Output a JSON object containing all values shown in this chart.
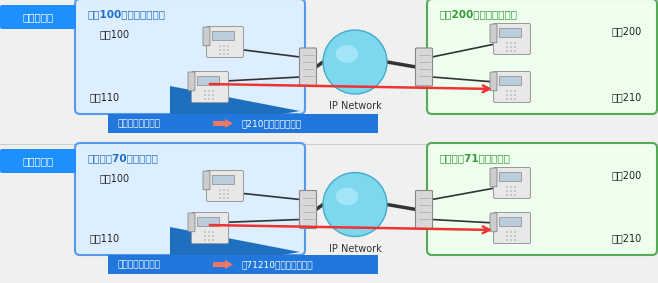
{
  "bg_color": "#f0f0f0",
  "row1": {
    "label_text": "閉番号方式",
    "label_bg": "#1e8fff",
    "label_fg": "#ffffff",
    "left_box_title": "内線100番台のシステム",
    "left_box_title_color": "#1e6fcc",
    "left_box_border": "#5599ee",
    "left_box_bg": "#ddeeff",
    "right_box_title": "内線200番台のシステム",
    "right_box_title_color": "#339933",
    "right_box_border": "#55aa55",
    "right_box_bg": "#eeffee",
    "ext_left_top": "内線100",
    "ext_left_bot": "内線110",
    "ext_right_top": "内線200",
    "ext_right_bot": "内線210",
    "banner_text1": "受話器を上げる。",
    "banner_text2": "「210」とダイヤル。",
    "banner_bg": "#2277dd",
    "banner_fg": "#ffffff"
  },
  "row2": {
    "label_text": "開番号方式",
    "label_bg": "#1e8fff",
    "label_fg": "#ffffff",
    "left_box_title": "局番号：70のシステム",
    "left_box_title_color": "#1e6fcc",
    "left_box_border": "#5599ee",
    "left_box_bg": "#ddeeff",
    "right_box_title": "局番号：71のシステム",
    "right_box_title_color": "#339933",
    "right_box_border": "#55aa55",
    "right_box_bg": "#eeffee",
    "ext_left_top": "内線100",
    "ext_left_bot": "内線110",
    "ext_right_top": "内線200",
    "ext_right_bot": "内線210",
    "banner_text1": "受話器を上げる。",
    "banner_text2": "「71210」とダイヤル。",
    "banner_bg": "#2277dd",
    "banner_fg": "#ffffff"
  },
  "ip_network_label": "IP Network",
  "sphere_color1": "#aaddee",
  "sphere_color2": "#55ccee",
  "line_black": "#333333",
  "red_arrow": "#ee3333",
  "blue_tri": "#1e6fbf",
  "pink_arrow": "#ee7766"
}
